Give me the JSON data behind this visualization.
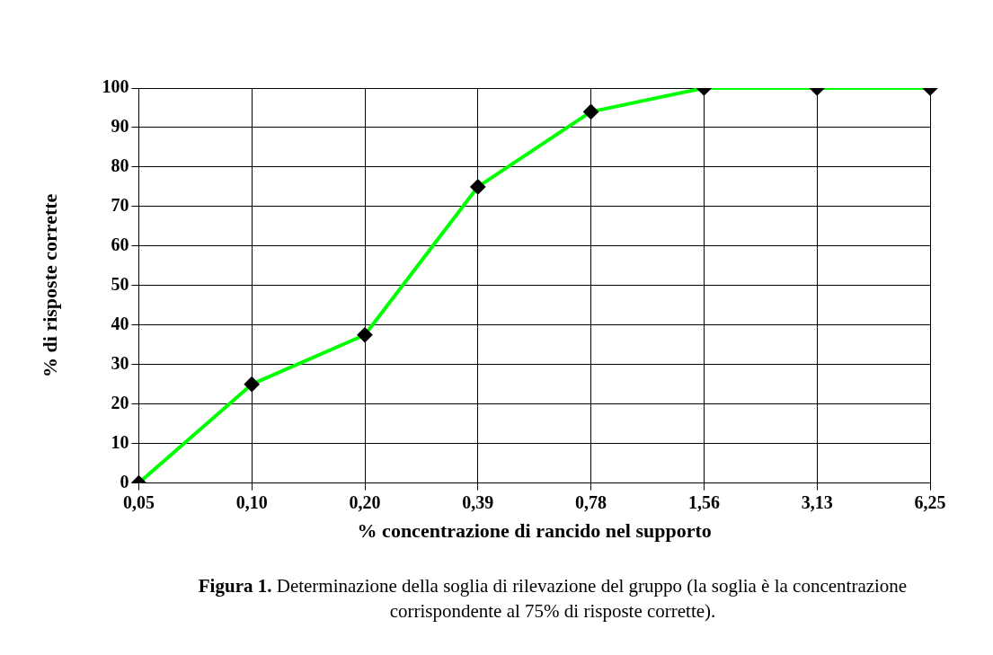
{
  "chart_data": {
    "type": "line",
    "xlabel": "% concentrazione di rancido nel supporto",
    "ylabel": "% di risposte corrette",
    "categories": [
      "0,05",
      "0,10",
      "0,20",
      "0,39",
      "0,78",
      "1,56",
      "3,13",
      "6,25"
    ],
    "series": [
      {
        "color": "#00ff00",
        "values": [
          0,
          25,
          37.5,
          75,
          94,
          100,
          100,
          100
        ]
      }
    ],
    "ylim": [
      0,
      100
    ],
    "yticks": [
      0,
      10,
      20,
      30,
      40,
      50,
      60,
      70,
      80,
      90,
      100
    ],
    "grid": true,
    "legend": false,
    "marker": "diamond",
    "line_style": "solid",
    "annotations": [
      "Figura 1.",
      "Determinazione della soglia di rilevazione del gruppo (la soglia è la concentrazione corrispondente al 75% di risposte corrette)."
    ]
  }
}
